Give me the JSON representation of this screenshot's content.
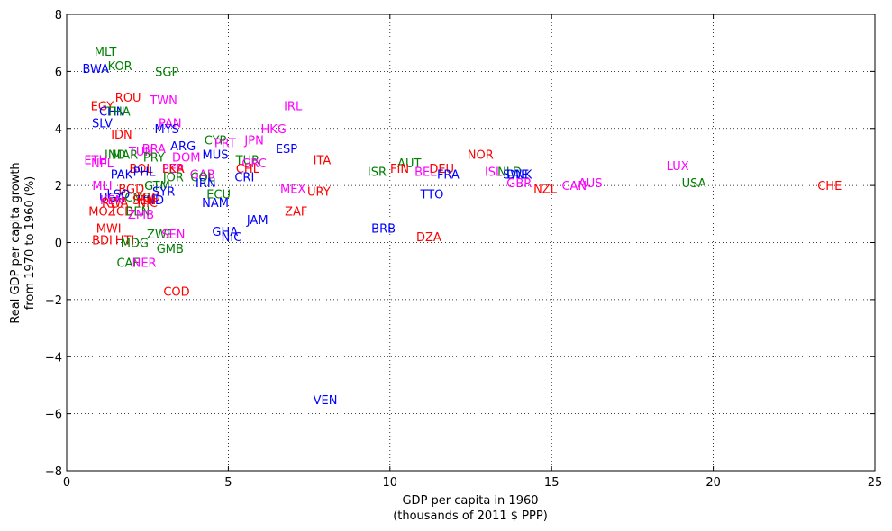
{
  "chart_data": {
    "type": "scatter",
    "xlabel": [
      "GDP per capita in 1960",
      "(thousands of 2011 $ PPP)"
    ],
    "ylabel": [
      "Real GDP per capita growth",
      "from 1970 to 1960 (%)"
    ],
    "xlim": [
      0,
      25
    ],
    "ylim": [
      -8,
      8
    ],
    "xticks": [
      0,
      5,
      10,
      15,
      20,
      25
    ],
    "yticks": [
      -8,
      -6,
      -4,
      -2,
      0,
      2,
      4,
      6,
      8
    ],
    "grid": true,
    "colors": {
      "red": "#ff0000",
      "green": "#008000",
      "blue": "#0000ff",
      "magenta": "#ff00ff"
    },
    "points": [
      {
        "label": "MLT",
        "x": 1.2,
        "y": 6.7,
        "c": "green"
      },
      {
        "label": "KOR",
        "x": 1.65,
        "y": 6.2,
        "c": "green"
      },
      {
        "label": "BWA",
        "x": 0.9,
        "y": 6.1,
        "c": "blue"
      },
      {
        "label": "SGP",
        "x": 3.1,
        "y": 6.0,
        "c": "green"
      },
      {
        "label": "EGY",
        "x": 1.1,
        "y": 4.8,
        "c": "red"
      },
      {
        "label": "ROU",
        "x": 1.9,
        "y": 5.1,
        "c": "red"
      },
      {
        "label": "TWN",
        "x": 3.0,
        "y": 5.0,
        "c": "magenta"
      },
      {
        "label": "CHN",
        "x": 1.4,
        "y": 4.6,
        "c": "blue"
      },
      {
        "label": "THA",
        "x": 1.6,
        "y": 4.6,
        "c": "green"
      },
      {
        "label": "SLV",
        "x": 1.1,
        "y": 4.2,
        "c": "blue"
      },
      {
        "label": "PAN",
        "x": 3.2,
        "y": 4.2,
        "c": "magenta"
      },
      {
        "label": "MYS",
        "x": 3.1,
        "y": 4.0,
        "c": "blue"
      },
      {
        "label": "IRL",
        "x": 7.0,
        "y": 4.8,
        "c": "magenta"
      },
      {
        "label": "HKG",
        "x": 6.4,
        "y": 4.0,
        "c": "magenta"
      },
      {
        "label": "IDN",
        "x": 1.7,
        "y": 3.8,
        "c": "red"
      },
      {
        "label": "CYP",
        "x": 4.6,
        "y": 3.6,
        "c": "green"
      },
      {
        "label": "PRT",
        "x": 4.9,
        "y": 3.5,
        "c": "magenta"
      },
      {
        "label": "JPN",
        "x": 5.8,
        "y": 3.6,
        "c": "magenta"
      },
      {
        "label": "ARG",
        "x": 3.6,
        "y": 3.4,
        "c": "blue"
      },
      {
        "label": "BRA",
        "x": 2.7,
        "y": 3.3,
        "c": "magenta"
      },
      {
        "label": "ESP",
        "x": 6.8,
        "y": 3.3,
        "c": "blue"
      },
      {
        "label": "TUN",
        "x": 2.3,
        "y": 3.2,
        "c": "magenta"
      },
      {
        "label": "IND",
        "x": 1.5,
        "y": 3.1,
        "c": "green"
      },
      {
        "label": "MAR",
        "x": 1.8,
        "y": 3.1,
        "c": "green"
      },
      {
        "label": "MUS",
        "x": 4.6,
        "y": 3.1,
        "c": "blue"
      },
      {
        "label": "DOM",
        "x": 3.7,
        "y": 3.0,
        "c": "magenta"
      },
      {
        "label": "PRY",
        "x": 2.7,
        "y": 3.0,
        "c": "green"
      },
      {
        "label": "TUR",
        "x": 5.6,
        "y": 2.9,
        "c": "green"
      },
      {
        "label": "GRC",
        "x": 5.8,
        "y": 2.8,
        "c": "magenta"
      },
      {
        "label": "ITA",
        "x": 7.9,
        "y": 2.9,
        "c": "red"
      },
      {
        "label": "ETH",
        "x": 0.9,
        "y": 2.9,
        "c": "magenta"
      },
      {
        "label": "NPL",
        "x": 1.1,
        "y": 2.8,
        "c": "magenta"
      },
      {
        "label": "BOL",
        "x": 2.3,
        "y": 2.6,
        "c": "red"
      },
      {
        "label": "PHL",
        "x": 2.4,
        "y": 2.5,
        "c": "blue"
      },
      {
        "label": "PER",
        "x": 3.3,
        "y": 2.6,
        "c": "magenta"
      },
      {
        "label": "LKA",
        "x": 3.3,
        "y": 2.6,
        "c": "red"
      },
      {
        "label": "CHL",
        "x": 5.6,
        "y": 2.6,
        "c": "red"
      },
      {
        "label": "GAB",
        "x": 4.2,
        "y": 2.4,
        "c": "magenta"
      },
      {
        "label": "PAK",
        "x": 1.7,
        "y": 2.4,
        "c": "blue"
      },
      {
        "label": "JOR",
        "x": 3.3,
        "y": 2.3,
        "c": "green"
      },
      {
        "label": "COL",
        "x": 4.2,
        "y": 2.3,
        "c": "green"
      },
      {
        "label": "CRI",
        "x": 5.5,
        "y": 2.3,
        "c": "blue"
      },
      {
        "label": "IRN",
        "x": 4.3,
        "y": 2.1,
        "c": "blue"
      },
      {
        "label": "AUT",
        "x": 10.6,
        "y": 2.8,
        "c": "green"
      },
      {
        "label": "FIN",
        "x": 10.3,
        "y": 2.6,
        "c": "red"
      },
      {
        "label": "NOR",
        "x": 12.8,
        "y": 3.1,
        "c": "red"
      },
      {
        "label": "DEU",
        "x": 11.6,
        "y": 2.6,
        "c": "red"
      },
      {
        "label": "ISR",
        "x": 9.6,
        "y": 2.5,
        "c": "green"
      },
      {
        "label": "BEL",
        "x": 11.1,
        "y": 2.5,
        "c": "magenta"
      },
      {
        "label": "FRA",
        "x": 11.8,
        "y": 2.4,
        "c": "blue"
      },
      {
        "label": "ISL",
        "x": 13.2,
        "y": 2.5,
        "c": "magenta"
      },
      {
        "label": "NLD",
        "x": 13.7,
        "y": 2.5,
        "c": "green"
      },
      {
        "label": "SWE",
        "x": 13.9,
        "y": 2.4,
        "c": "blue"
      },
      {
        "label": "DNK",
        "x": 14.0,
        "y": 2.4,
        "c": "blue"
      },
      {
        "label": "GBR",
        "x": 14.0,
        "y": 2.1,
        "c": "magenta"
      },
      {
        "label": "LUX",
        "x": 18.9,
        "y": 2.7,
        "c": "magenta"
      },
      {
        "label": "AUS",
        "x": 16.2,
        "y": 2.1,
        "c": "magenta"
      },
      {
        "label": "CAN",
        "x": 15.7,
        "y": 2.0,
        "c": "magenta"
      },
      {
        "label": "NZL",
        "x": 14.8,
        "y": 1.9,
        "c": "red"
      },
      {
        "label": "USA",
        "x": 19.4,
        "y": 2.1,
        "c": "green"
      },
      {
        "label": "CHE",
        "x": 23.6,
        "y": 2.0,
        "c": "red"
      },
      {
        "label": "TTO",
        "x": 11.3,
        "y": 1.7,
        "c": "blue"
      },
      {
        "label": "MEX",
        "x": 7.0,
        "y": 1.9,
        "c": "magenta"
      },
      {
        "label": "URY",
        "x": 7.8,
        "y": 1.8,
        "c": "red"
      },
      {
        "label": "ECU",
        "x": 4.7,
        "y": 1.7,
        "c": "green"
      },
      {
        "label": "NAM",
        "x": 4.6,
        "y": 1.4,
        "c": "blue"
      },
      {
        "label": "ZAF",
        "x": 7.1,
        "y": 1.1,
        "c": "red"
      },
      {
        "label": "MLI",
        "x": 1.1,
        "y": 2.0,
        "c": "magenta"
      },
      {
        "label": "BGD",
        "x": 2.0,
        "y": 1.9,
        "c": "red"
      },
      {
        "label": "GTM",
        "x": 2.8,
        "y": 2.0,
        "c": "green"
      },
      {
        "label": "SYR",
        "x": 3.0,
        "y": 1.8,
        "c": "blue"
      },
      {
        "label": "UGA",
        "x": 1.4,
        "y": 1.6,
        "c": "blue"
      },
      {
        "label": "LSO",
        "x": 1.6,
        "y": 1.7,
        "c": "blue"
      },
      {
        "label": "CMR",
        "x": 2.2,
        "y": 1.6,
        "c": "green"
      },
      {
        "label": "KEN",
        "x": 1.4,
        "y": 1.5,
        "c": "magenta"
      },
      {
        "label": "TGO",
        "x": 2.5,
        "y": 1.6,
        "c": "red"
      },
      {
        "label": "HND",
        "x": 2.6,
        "y": 1.5,
        "c": "blue"
      },
      {
        "label": "SEN",
        "x": 2.4,
        "y": 1.5,
        "c": "red"
      },
      {
        "label": "RWA",
        "x": 1.5,
        "y": 1.4,
        "c": "red"
      },
      {
        "label": "NIC",
        "x": 2.5,
        "y": 1.4,
        "c": "red"
      },
      {
        "label": "MOZ",
        "x": 1.1,
        "y": 1.1,
        "c": "red"
      },
      {
        "label": "TCD",
        "x": 1.7,
        "y": 1.1,
        "c": "red"
      },
      {
        "label": "BEN",
        "x": 2.2,
        "y": 1.1,
        "c": "green"
      },
      {
        "label": "ZMB",
        "x": 2.3,
        "y": 1.0,
        "c": "magenta"
      },
      {
        "label": "JAM",
        "x": 5.9,
        "y": 0.8,
        "c": "blue"
      },
      {
        "label": "BRB",
        "x": 9.8,
        "y": 0.5,
        "c": "blue"
      },
      {
        "label": "DZA",
        "x": 11.2,
        "y": 0.2,
        "c": "red"
      },
      {
        "label": "MWI",
        "x": 1.3,
        "y": 0.5,
        "c": "red"
      },
      {
        "label": "GHA",
        "x": 4.9,
        "y": 0.4,
        "c": "blue"
      },
      {
        "label": "ZWE",
        "x": 2.9,
        "y": 0.3,
        "c": "green"
      },
      {
        "label": "SEN",
        "x": 3.3,
        "y": 0.3,
        "c": "magenta"
      },
      {
        "label": "NIC",
        "x": 5.1,
        "y": 0.2,
        "c": "blue"
      },
      {
        "label": "BDI",
        "x": 1.1,
        "y": 0.1,
        "c": "red"
      },
      {
        "label": "HTI",
        "x": 1.8,
        "y": 0.1,
        "c": "red"
      },
      {
        "label": "MDG",
        "x": 2.1,
        "y": 0.0,
        "c": "green"
      },
      {
        "label": "GMB",
        "x": 3.2,
        "y": -0.2,
        "c": "green"
      },
      {
        "label": "CAF",
        "x": 1.9,
        "y": -0.7,
        "c": "green"
      },
      {
        "label": "NER",
        "x": 2.4,
        "y": -0.7,
        "c": "magenta"
      },
      {
        "label": "COD",
        "x": 3.4,
        "y": -1.7,
        "c": "red"
      },
      {
        "label": "VEN",
        "x": 8.0,
        "y": -5.5,
        "c": "blue"
      }
    ]
  }
}
